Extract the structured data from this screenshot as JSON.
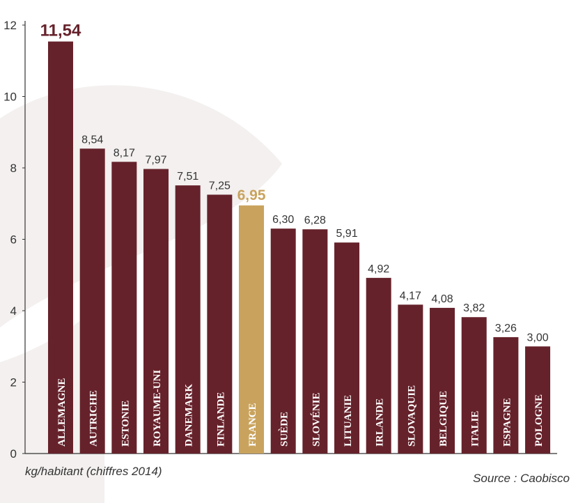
{
  "chart_data": {
    "type": "bar",
    "categories": [
      "ALLEMAGNE",
      "AUTRICHE",
      "ESTONIE",
      "ROYAUME-UNI",
      "DANEMARK",
      "FINLANDE",
      "FRANCE",
      "SUÈDE",
      "SLOVÉNIE",
      "LITUANIE",
      "IRLANDE",
      "SLOVAQUIE",
      "BELGIQUE",
      "ITALIE",
      "ESPAGNE",
      "POLOGNE"
    ],
    "values": [
      11.54,
      8.54,
      8.17,
      7.97,
      7.51,
      7.25,
      6.95,
      6.3,
      6.28,
      5.91,
      4.92,
      4.17,
      4.08,
      3.82,
      3.26,
      3.0
    ],
    "value_labels": [
      "11,54",
      "8,54",
      "8,17",
      "7,97",
      "7,51",
      "7,25",
      "6,95",
      "6,30",
      "6,28",
      "5,91",
      "4,92",
      "4,17",
      "4,08",
      "3,82",
      "3,26",
      "3,00"
    ],
    "yticks": [
      0,
      2,
      4,
      6,
      8,
      10,
      12
    ],
    "ylim": [
      0,
      12
    ],
    "ylabel": "kg/habitant (chiffres 2014)",
    "source": "Source : Caobisco",
    "highlight_category": "FRANCE",
    "max_category": "ALLEMAGNE",
    "grid": false,
    "legend": "none"
  },
  "colors": {
    "bar": "#66222b",
    "highlight": "#c9a35e",
    "axis": "#333333",
    "label_text": "#333333",
    "bar_text": "#ffffff",
    "watermark": "#f3f0ef"
  }
}
